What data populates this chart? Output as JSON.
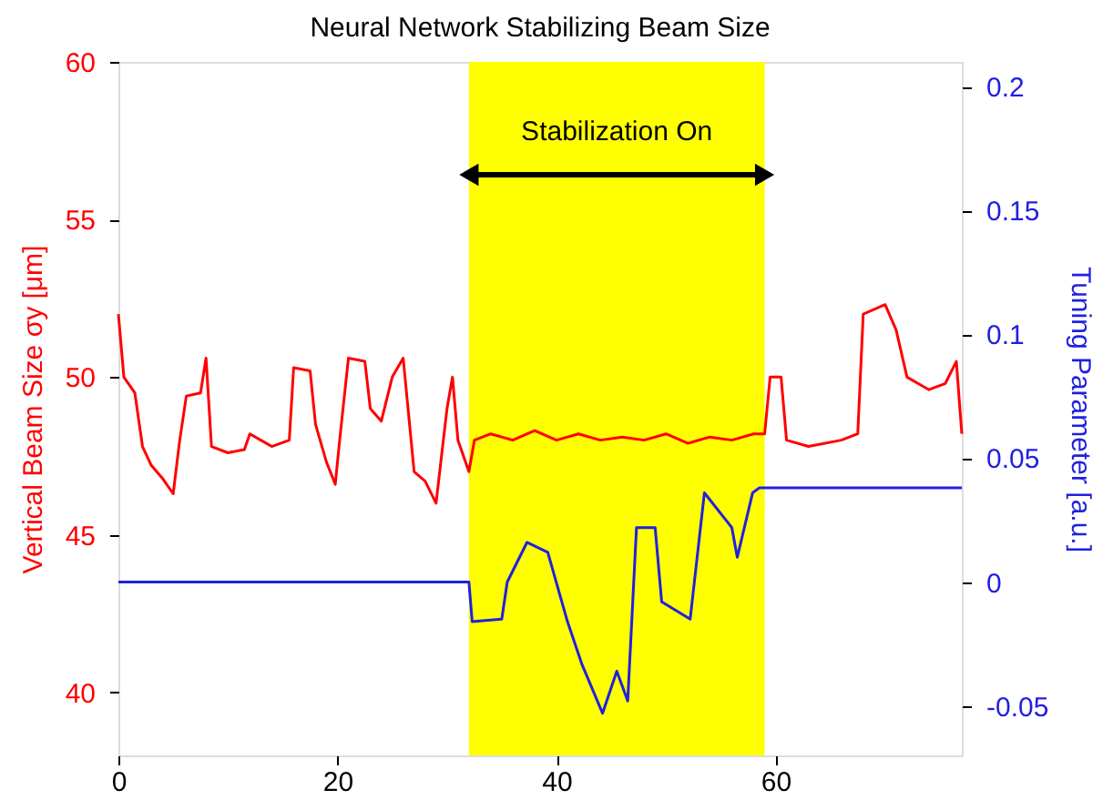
{
  "chart_data": {
    "type": "line",
    "title": "Neural Network Stabilizing Beam Size",
    "ylabel": "Vertical Beam Size σy [μm]",
    "y2label": "Tuning Parameter [a.u.]",
    "xlim": [
      0,
      77
    ],
    "xticks": [
      0,
      20,
      40,
      60
    ],
    "ylim": [
      38,
      60
    ],
    "yticks": [
      40,
      45,
      50,
      55,
      60
    ],
    "y2lim": [
      -0.07,
      0.21
    ],
    "y2ticks": [
      -0.05,
      0,
      0.05,
      0.1,
      0.15,
      0.2
    ],
    "grid": false,
    "legend": false,
    "line_style": "solid",
    "marker": "none",
    "bands": [
      {
        "axis": "x",
        "from": 32,
        "to": 59,
        "color": "#ffff00"
      }
    ],
    "annotations": [
      "Stabilization On"
    ],
    "series": [
      {
        "color": "#ff0000",
        "x": [
          0,
          0.5,
          1.5,
          2.2,
          3,
          4,
          5,
          5.6,
          6.2,
          7.5,
          8,
          8.5,
          10,
          11.5,
          12,
          13,
          14,
          15.6,
          16,
          17.5,
          18,
          19,
          19.8,
          20.2,
          21,
          22.5,
          23,
          24,
          25,
          26,
          27,
          28,
          29,
          30,
          30.5,
          31,
          32,
          32.5,
          34,
          36,
          38,
          40,
          42,
          44,
          46,
          48,
          50,
          52,
          54,
          56,
          58,
          59,
          59.5,
          60.5,
          61,
          63,
          66,
          67.5,
          68,
          70,
          71,
          72,
          74,
          75.5,
          76.5,
          77
        ],
        "values": [
          52.0,
          50.0,
          49.5,
          47.8,
          47.2,
          46.8,
          46.3,
          48.0,
          49.4,
          49.5,
          50.6,
          47.8,
          47.6,
          47.7,
          48.2,
          48.0,
          47.8,
          48.0,
          50.3,
          50.2,
          48.5,
          47.3,
          46.6,
          48.0,
          50.6,
          50.5,
          49.0,
          48.6,
          50.0,
          50.6,
          47.0,
          46.7,
          46.0,
          49.0,
          50.0,
          48.0,
          47.0,
          48.0,
          48.2,
          48.0,
          48.3,
          48.0,
          48.2,
          48.0,
          48.1,
          48.0,
          48.2,
          47.9,
          48.1,
          48.0,
          48.2,
          48.2,
          50.0,
          50.0,
          48.0,
          47.8,
          48.0,
          48.2,
          52.0,
          52.3,
          51.5,
          50.0,
          49.6,
          49.8,
          50.5,
          48.2
        ]
      },
      {
        "color": "#2020e0",
        "axis": "y2",
        "x": [
          0,
          32,
          32.3,
          35,
          35.5,
          37.3,
          39.2,
          41,
          42.3,
          44.2,
          45.5,
          46.5,
          47.3,
          49,
          49.6,
          52.2,
          53.5,
          56,
          56.5,
          57.9,
          58.5,
          77
        ],
        "values": [
          0,
          0,
          -0.016,
          -0.015,
          0.0,
          0.016,
          0.012,
          -0.016,
          -0.033,
          -0.053,
          -0.036,
          -0.048,
          0.022,
          0.022,
          -0.008,
          -0.015,
          0.036,
          0.022,
          0.01,
          0.036,
          0.038,
          0.038
        ]
      }
    ]
  }
}
